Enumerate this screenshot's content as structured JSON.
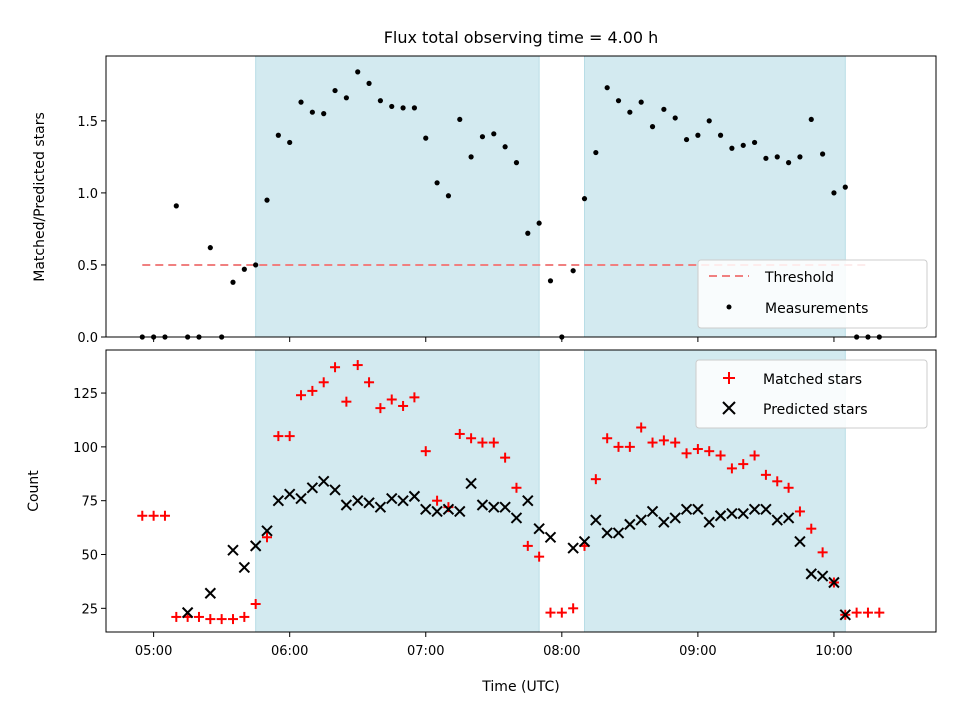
{
  "chart_data": {
    "type": "scatter",
    "title": "Flux total observing time = 4.00 h",
    "xlabel": "Time (UTC)",
    "xlim": [
      "04:39",
      "10:45"
    ],
    "x_ticks": [
      "05:00",
      "06:00",
      "07:00",
      "08:00",
      "09:00",
      "10:00"
    ],
    "shaded_intervals": [
      [
        "05:45",
        "07:50"
      ],
      [
        "08:10",
        "10:05"
      ]
    ],
    "shade_color": "#d3eaf0",
    "top_panel": {
      "ylabel": "Matched/Predicted stars",
      "ylim": [
        0,
        1.95
      ],
      "y_ticks": [
        "0.0",
        "0.5",
        "1.0",
        "1.5"
      ],
      "threshold": {
        "name": "Threshold",
        "value": 0.5,
        "x_range": [
          "04:55",
          "10:15"
        ],
        "color": "#f08080"
      },
      "measurements": {
        "name": "Measurements",
        "color": "#000000",
        "x": [
          "04:55",
          "05:00",
          "05:05",
          "05:10",
          "05:15",
          "05:20",
          "05:25",
          "05:30",
          "05:35",
          "05:40",
          "05:45",
          "05:50",
          "05:55",
          "06:00",
          "06:05",
          "06:10",
          "06:15",
          "06:20",
          "06:25",
          "06:30",
          "06:35",
          "06:40",
          "06:45",
          "06:50",
          "06:55",
          "07:00",
          "07:05",
          "07:10",
          "07:15",
          "07:20",
          "07:25",
          "07:30",
          "07:35",
          "07:40",
          "07:45",
          "07:50",
          "07:55",
          "08:00",
          "08:05",
          "08:10",
          "08:15",
          "08:20",
          "08:25",
          "08:30",
          "08:35",
          "08:40",
          "08:45",
          "08:50",
          "08:55",
          "09:00",
          "09:05",
          "09:10",
          "09:15",
          "09:20",
          "09:25",
          "09:30",
          "09:35",
          "09:40",
          "09:45",
          "09:50",
          "09:55",
          "10:00",
          "10:05",
          "10:10",
          "10:15",
          "10:20"
        ],
        "y": [
          0,
          0,
          0,
          0.91,
          0,
          0,
          0.62,
          0,
          0.38,
          0.47,
          0.5,
          0.95,
          1.4,
          1.35,
          1.63,
          1.56,
          1.55,
          1.71,
          1.66,
          1.84,
          1.76,
          1.64,
          1.6,
          1.59,
          1.59,
          1.38,
          1.07,
          0.98,
          1.51,
          1.25,
          1.39,
          1.41,
          1.32,
          1.21,
          0.72,
          0.79,
          0.39,
          0,
          0.46,
          0.96,
          1.28,
          1.73,
          1.64,
          1.56,
          1.63,
          1.46,
          1.58,
          1.52,
          1.37,
          1.4,
          1.5,
          1.4,
          1.31,
          1.33,
          1.35,
          1.24,
          1.25,
          1.21,
          1.25,
          1.51,
          1.27,
          1,
          1.04,
          0,
          0,
          0
        ]
      }
    },
    "bottom_panel": {
      "ylabel": "Count",
      "ylim": [
        14,
        145
      ],
      "y_ticks": [
        "25",
        "50",
        "75",
        "100",
        "125"
      ],
      "series": [
        {
          "name": "Matched stars",
          "marker": "+",
          "color": "#ff0000",
          "x": [
            "04:55",
            "05:00",
            "05:05",
            "05:10",
            "05:15",
            "05:20",
            "05:25",
            "05:30",
            "05:35",
            "05:40",
            "05:45",
            "05:50",
            "05:55",
            "06:00",
            "06:05",
            "06:10",
            "06:15",
            "06:20",
            "06:25",
            "06:30",
            "06:35",
            "06:40",
            "06:45",
            "06:50",
            "06:55",
            "07:00",
            "07:05",
            "07:10",
            "07:15",
            "07:20",
            "07:25",
            "07:30",
            "07:35",
            "07:40",
            "07:45",
            "07:50",
            "07:55",
            "08:00",
            "08:05",
            "08:10",
            "08:15",
            "08:20",
            "08:25",
            "08:30",
            "08:35",
            "08:40",
            "08:45",
            "08:50",
            "08:55",
            "09:00",
            "09:05",
            "09:10",
            "09:15",
            "09:20",
            "09:25",
            "09:30",
            "09:35",
            "09:40",
            "09:45",
            "09:50",
            "09:55",
            "10:00",
            "10:05",
            "10:10",
            "10:15",
            "10:20"
          ],
          "y": [
            68,
            68,
            68,
            21,
            21,
            21,
            20,
            20,
            20,
            21,
            27,
            58,
            105,
            105,
            124,
            126,
            130,
            137,
            121,
            138,
            130,
            118,
            122,
            119,
            123,
            98,
            75,
            72,
            106,
            104,
            102,
            102,
            95,
            81,
            54,
            49,
            23,
            23,
            25,
            54,
            85,
            104,
            100,
            100,
            109,
            102,
            103,
            102,
            97,
            99,
            98,
            96,
            90,
            92,
            96,
            87,
            84,
            81,
            70,
            62,
            51,
            37,
            22,
            23,
            23,
            23
          ]
        },
        {
          "name": "Predicted stars",
          "marker": "x",
          "color": "#000000",
          "x": [
            "05:15",
            "05:25",
            "05:35",
            "05:40",
            "05:45",
            "05:50",
            "05:55",
            "06:00",
            "06:05",
            "06:10",
            "06:15",
            "06:20",
            "06:25",
            "06:30",
            "06:35",
            "06:40",
            "06:45",
            "06:50",
            "06:55",
            "07:00",
            "07:05",
            "07:10",
            "07:15",
            "07:20",
            "07:25",
            "07:30",
            "07:35",
            "07:40",
            "07:45",
            "07:50",
            "07:55",
            "08:05",
            "08:10",
            "08:15",
            "08:20",
            "08:25",
            "08:30",
            "08:35",
            "08:40",
            "08:45",
            "08:50",
            "08:55",
            "09:00",
            "09:05",
            "09:10",
            "09:15",
            "09:20",
            "09:25",
            "09:30",
            "09:35",
            "09:40",
            "09:45",
            "09:50",
            "09:55",
            "10:00",
            "10:05"
          ],
          "y": [
            23,
            32,
            52,
            44,
            54,
            61,
            75,
            78,
            76,
            81,
            84,
            80,
            73,
            75,
            74,
            72,
            76,
            75,
            77,
            71,
            70,
            71,
            70,
            83,
            73,
            72,
            72,
            67,
            75,
            62,
            58,
            53,
            56,
            66,
            60,
            60,
            64,
            66,
            70,
            65,
            67,
            71,
            71,
            65,
            68,
            69,
            69,
            71,
            71,
            66,
            67,
            56,
            41,
            40,
            37,
            22
          ]
        }
      ]
    },
    "legends": {
      "top": {
        "placement": "lower right",
        "entries": [
          "Threshold",
          "Measurements"
        ]
      },
      "bottom": {
        "placement": "upper right",
        "entries": [
          "Matched stars",
          "Predicted stars"
        ]
      }
    }
  }
}
